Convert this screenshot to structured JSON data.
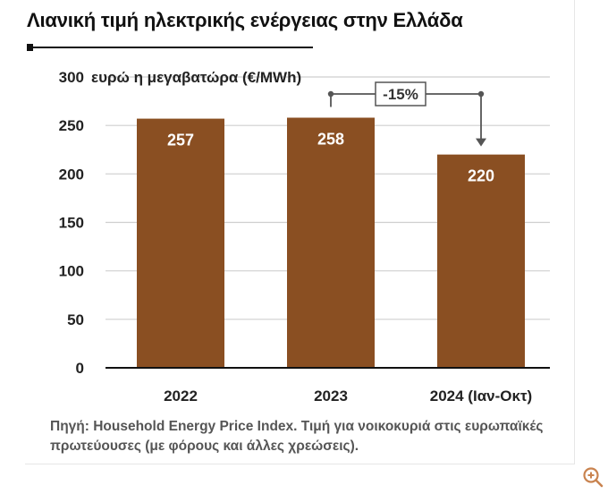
{
  "title": "Λιανική τιμή ηλεκτρικής ενέργειας στην Ελλάδα",
  "source_note": "Πηγή: Household Energy Price Index. Τιμή για νοικοκυριά στις ευρωπαϊκές πρωτεύουσες (με φόρους και άλλες χρεώσεις).",
  "zoom_icon": "zoom-in-icon",
  "colors": {
    "bar": "#8a4f22",
    "grid": "#cfcfcf",
    "text": "#111111",
    "label": "#ffffff"
  },
  "chart_data": {
    "type": "bar",
    "title": "Λιανική τιμή ηλεκτρικής ενέργειας στην Ελλάδα",
    "ylabel": "ευρώ η μεγαβατώρα (€/MWh)",
    "xlabel": "",
    "categories": [
      "2022",
      "2023",
      "2024 (Ιαν-Οκτ)"
    ],
    "values": [
      257,
      258,
      220
    ],
    "data_labels": [
      "257",
      "258",
      "220"
    ],
    "ylim": [
      0,
      300
    ],
    "yticks": [
      0,
      50,
      100,
      150,
      200,
      250,
      300
    ],
    "grid": true,
    "annotation": {
      "text": "-15%",
      "from": "2023",
      "to": "2024 (Ιαν-Οκτ)"
    }
  }
}
